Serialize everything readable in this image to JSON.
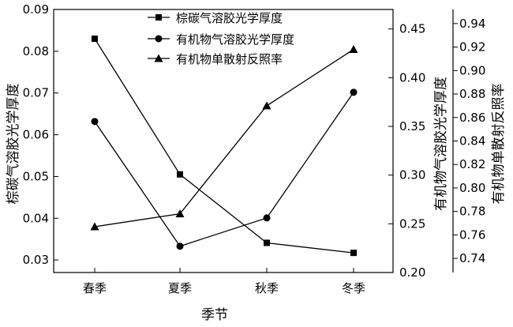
{
  "chart_data": {
    "type": "line",
    "categories": [
      "春季",
      "夏季",
      "秋季",
      "冬季"
    ],
    "xlabel": "季节",
    "axes": {
      "left": {
        "label": "棕碳气溶胶光学厚度",
        "range": [
          0.027,
          0.09
        ],
        "ticks": [
          "0.03",
          "0.04",
          "0.05",
          "0.06",
          "0.07",
          "0.08",
          "0.09"
        ]
      },
      "right1": {
        "label": "有机物气溶胶光学厚度",
        "range": [
          0.2,
          0.47
        ],
        "ticks": [
          "0.20",
          "0.25",
          "0.30",
          "0.35",
          "0.40",
          "0.45"
        ]
      },
      "right2": {
        "label": "有机物单散射反照率",
        "range": [
          0.728,
          0.952
        ],
        "ticks": [
          "0.74",
          "0.76",
          "0.78",
          "0.80",
          "0.82",
          "0.84",
          "0.86",
          "0.88",
          "0.90",
          "0.92",
          "0.94"
        ]
      }
    },
    "series": [
      {
        "name": "棕碳气溶胶光学厚度",
        "axis": "left",
        "marker": "square",
        "values": [
          0.083,
          0.0505,
          0.0341,
          0.0317
        ]
      },
      {
        "name": "有机物气溶胶光学厚度",
        "axis": "right1",
        "marker": "circle",
        "values": [
          0.355,
          0.227,
          0.256,
          0.385
        ]
      },
      {
        "name": "有机物单散射反照率",
        "axis": "right2",
        "marker": "triangle",
        "values": [
          0.767,
          0.778,
          0.87,
          0.918
        ]
      }
    ],
    "legend_position": "top-left"
  }
}
